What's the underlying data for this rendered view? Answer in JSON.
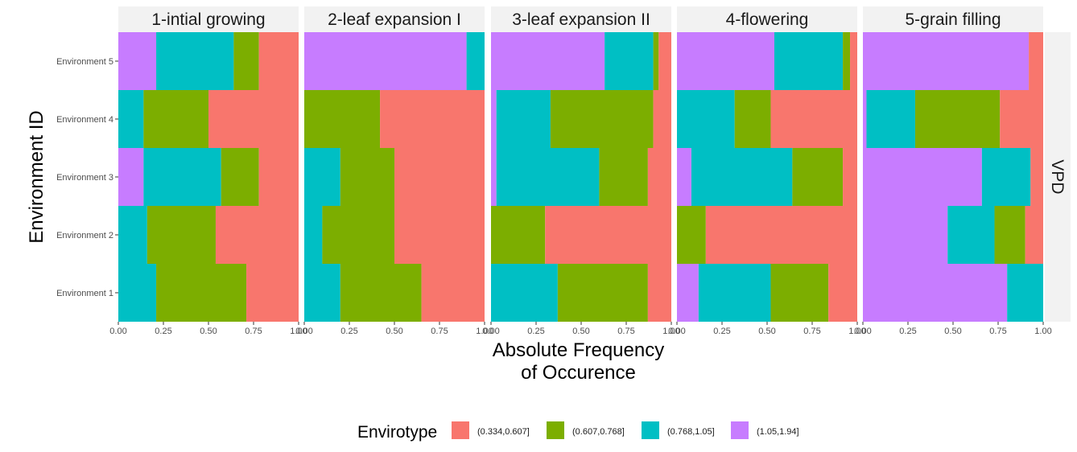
{
  "chart_data": {
    "type": "bar",
    "orientation": "horizontal",
    "stacked": true,
    "xlabel": "Absolute Frequency\nof Occurence",
    "ylabel": "Environment ID",
    "facet_row_label": "VPD",
    "xlim": [
      0,
      1
    ],
    "x_ticks": [
      "0.00",
      "0.25",
      "0.50",
      "0.75",
      "1.00"
    ],
    "categories": [
      "Environment 1",
      "Environment 2",
      "Environment 3",
      "Environment 4",
      "Environment 5"
    ],
    "legend": {
      "title": "Envirotype",
      "position": "bottom",
      "entries": [
        {
          "label": "(0.334,0.607]",
          "color": "#F8766D"
        },
        {
          "label": "(0.607,0.768]",
          "color": "#7CAE00"
        },
        {
          "label": "(0.768,1.05]",
          "color": "#00BFC4"
        },
        {
          "label": "(1.05,1.94]",
          "color": "#C77CFF"
        }
      ]
    },
    "panels": [
      {
        "title": "1-intial growing",
        "rows": [
          {
            "category": "Environment 1",
            "values": [
              0.29,
              0.5,
              0.21,
              0.0
            ]
          },
          {
            "category": "Environment 2",
            "values": [
              0.46,
              0.38,
              0.16,
              0.0
            ]
          },
          {
            "category": "Environment 3",
            "values": [
              0.22,
              0.21,
              0.43,
              0.14
            ]
          },
          {
            "category": "Environment 4",
            "values": [
              0.5,
              0.36,
              0.14,
              0.0
            ]
          },
          {
            "category": "Environment 5",
            "values": [
              0.22,
              0.14,
              0.43,
              0.21
            ]
          }
        ]
      },
      {
        "title": "2-leaf expansion I",
        "rows": [
          {
            "category": "Environment 1",
            "values": [
              0.35,
              0.45,
              0.2,
              0.0
            ]
          },
          {
            "category": "Environment 2",
            "values": [
              0.5,
              0.4,
              0.1,
              0.0
            ]
          },
          {
            "category": "Environment 3",
            "values": [
              0.5,
              0.3,
              0.2,
              0.0
            ]
          },
          {
            "category": "Environment 4",
            "values": [
              0.58,
              0.42,
              0.0,
              0.0
            ]
          },
          {
            "category": "Environment 5",
            "values": [
              0.0,
              0.0,
              0.1,
              0.9
            ]
          }
        ]
      },
      {
        "title": "3-leaf expansion II",
        "rows": [
          {
            "category": "Environment 1",
            "values": [
              0.13,
              0.5,
              0.37,
              0.0
            ]
          },
          {
            "category": "Environment 2",
            "values": [
              0.7,
              0.3,
              0.0,
              0.0
            ]
          },
          {
            "category": "Environment 3",
            "values": [
              0.13,
              0.27,
              0.57,
              0.03
            ]
          },
          {
            "category": "Environment 4",
            "values": [
              0.1,
              0.57,
              0.3,
              0.03
            ]
          },
          {
            "category": "Environment 5",
            "values": [
              0.07,
              0.03,
              0.27,
              0.63
            ]
          }
        ]
      },
      {
        "title": "4-flowering",
        "rows": [
          {
            "category": "Environment 1",
            "values": [
              0.16,
              0.32,
              0.4,
              0.12
            ]
          },
          {
            "category": "Environment 2",
            "values": [
              0.84,
              0.16,
              0.0,
              0.0
            ]
          },
          {
            "category": "Environment 3",
            "values": [
              0.08,
              0.28,
              0.56,
              0.08
            ]
          },
          {
            "category": "Environment 4",
            "values": [
              0.48,
              0.2,
              0.32,
              0.0
            ]
          },
          {
            "category": "Environment 5",
            "values": [
              0.04,
              0.04,
              0.38,
              0.54
            ]
          }
        ]
      },
      {
        "title": "5-grain filling",
        "rows": [
          {
            "category": "Environment 1",
            "values": [
              0.0,
              0.0,
              0.2,
              0.8
            ]
          },
          {
            "category": "Environment 2",
            "values": [
              0.1,
              0.17,
              0.26,
              0.47
            ]
          },
          {
            "category": "Environment 3",
            "values": [
              0.07,
              0.0,
              0.27,
              0.66
            ]
          },
          {
            "category": "Environment 4",
            "values": [
              0.24,
              0.47,
              0.27,
              0.02
            ]
          },
          {
            "category": "Environment 5",
            "values": [
              0.08,
              0.0,
              0.0,
              0.92
            ]
          }
        ]
      }
    ]
  }
}
